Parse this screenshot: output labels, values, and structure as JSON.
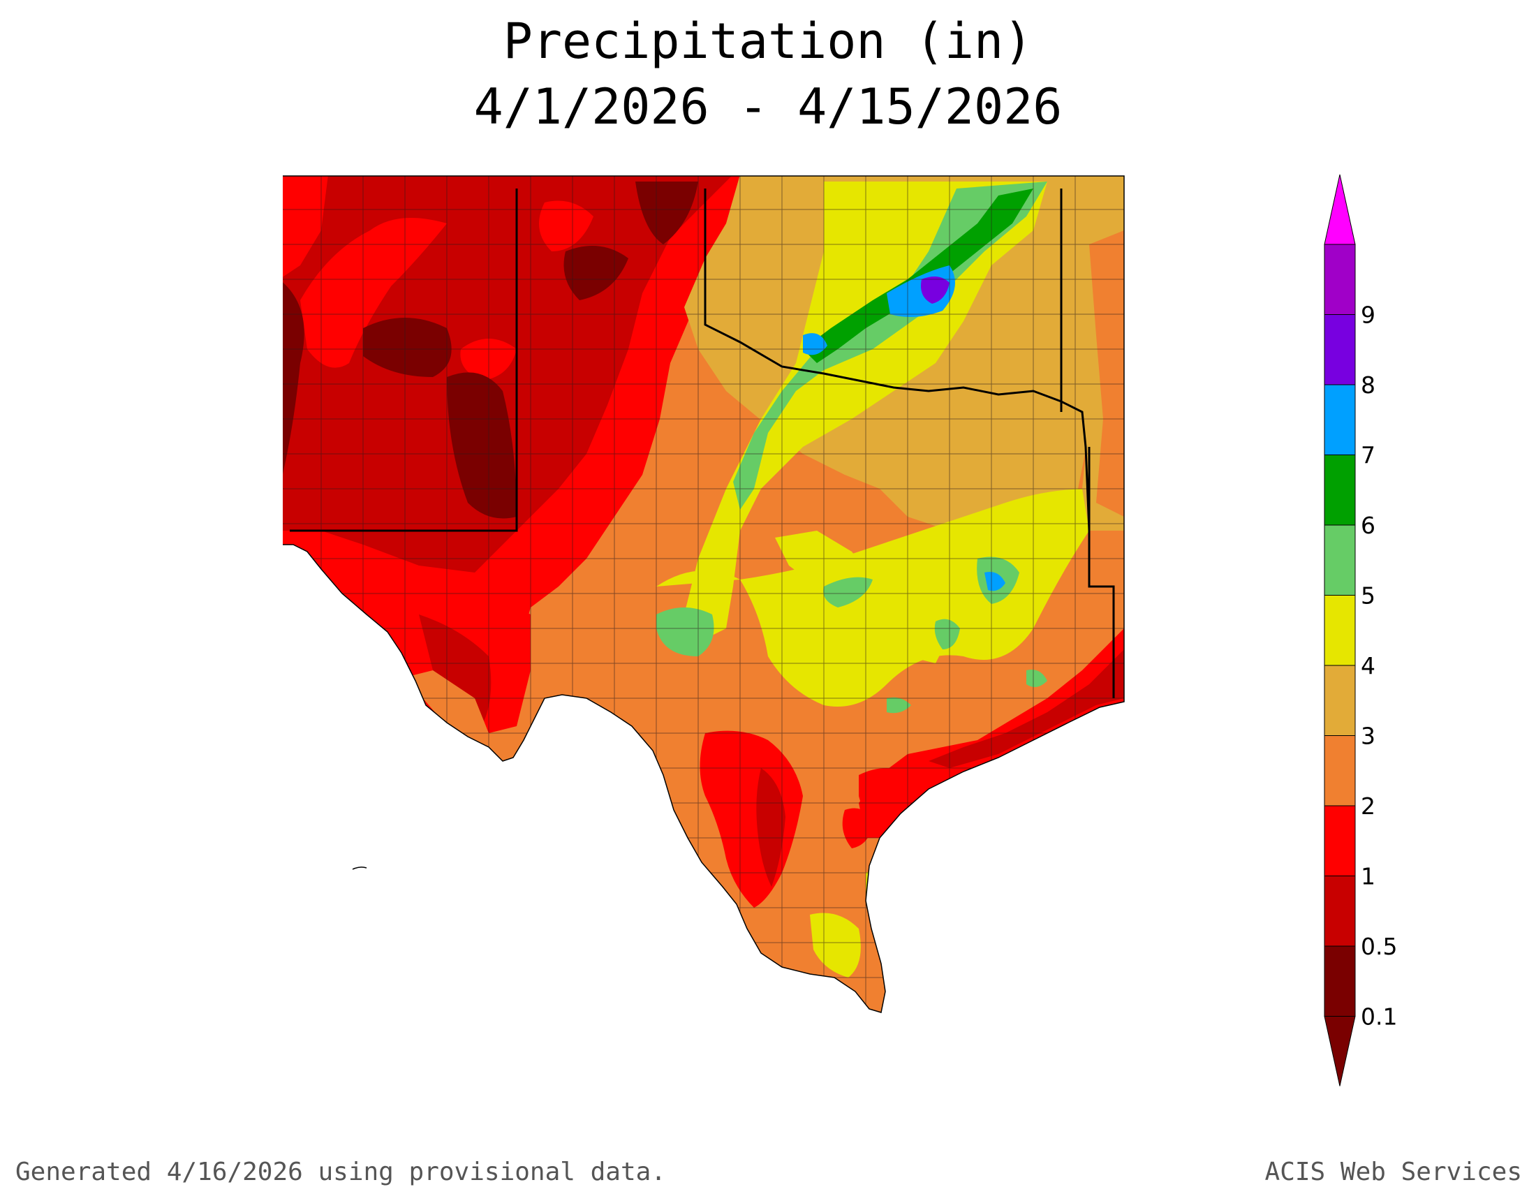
{
  "title": "Precipitation (in)",
  "date_range": "4/1/2026 - 4/15/2026",
  "footer": {
    "generated": "Generated 4/16/2026  using provisional data.",
    "source": "ACIS Web Services"
  },
  "legend": {
    "unit": "in",
    "bins": [
      {
        "label": "0.1",
        "color": "#7a0000"
      },
      {
        "label": "0.5",
        "color": "#c80000"
      },
      {
        "label": "1",
        "color": "#ff0000"
      },
      {
        "label": "2",
        "color": "#f08030"
      },
      {
        "label": "3",
        "color": "#e2ab38"
      },
      {
        "label": "4",
        "color": "#e6e600"
      },
      {
        "label": "5",
        "color": "#66cc66"
      },
      {
        "label": "6",
        "color": "#00a000"
      },
      {
        "label": "7",
        "color": "#00a0ff"
      },
      {
        "label": "8",
        "color": "#7800e0"
      },
      {
        "label": "9",
        "color": "#a000c8"
      }
    ],
    "low_cap_color": "#7a0000",
    "high_cap_color": "#ff00ff"
  },
  "map": {
    "region_states": [
      "New Mexico",
      "Texas",
      "Oklahoma"
    ],
    "pattern": "driest (under 0.5 in) over New Mexico, far west Texas and the Texas panhandle; 1-3 in across central and east Texas; 3-6 in over central Oklahoma and north-central Texas; local maximum 8-9 in over central Oklahoma; dry band along the upper Texas coast"
  }
}
